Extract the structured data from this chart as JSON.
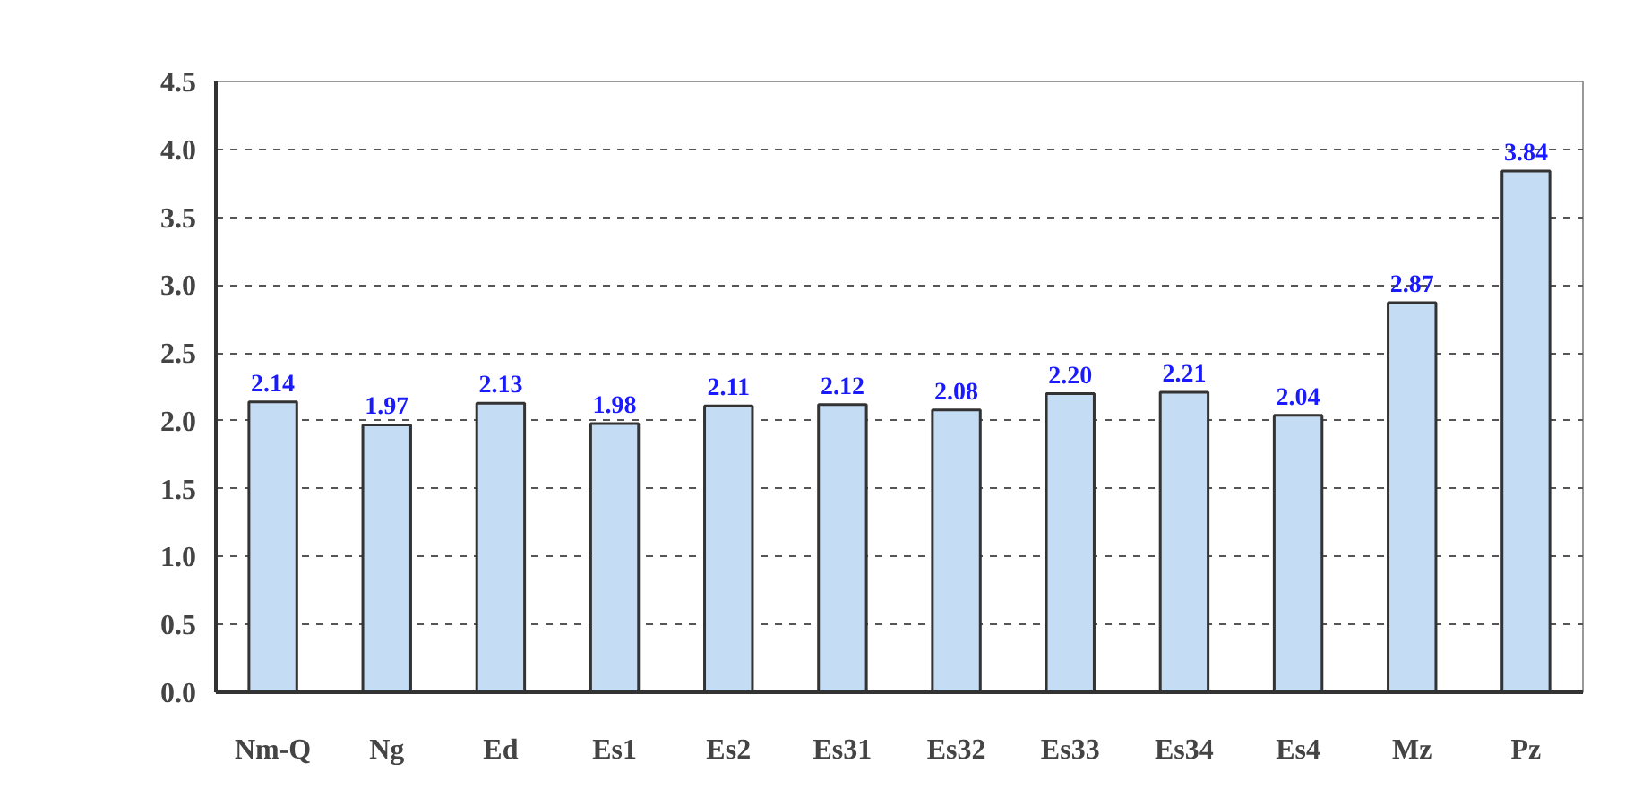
{
  "chart_data": {
    "type": "bar",
    "categories": [
      "Nm-Q",
      "Ng",
      "Ed",
      "Es1",
      "Es2",
      "Es31",
      "Es32",
      "Es33",
      "Es34",
      "Es4",
      "Mz",
      "Pz"
    ],
    "values": [
      2.14,
      1.97,
      2.13,
      1.98,
      2.11,
      2.12,
      2.08,
      2.2,
      2.21,
      2.04,
      2.87,
      3.84
    ],
    "value_labels": [
      "2.14",
      "1.97",
      "2.13",
      "1.98",
      "2.11",
      "2.12",
      "2.08",
      "2.20",
      "2.21",
      "2.04",
      "2.87",
      "3.84"
    ],
    "color": "#c4dcf4",
    "ylim": [
      0,
      4.5
    ],
    "yticks": [
      {
        "value": 0,
        "label": "0.0"
      },
      {
        "value": 0.5,
        "label": "0.5"
      },
      {
        "value": 1,
        "label": "1.0"
      },
      {
        "value": 1.5,
        "label": "1.5"
      },
      {
        "value": 2,
        "label": "2.0"
      },
      {
        "value": 2.5,
        "label": "2.5"
      },
      {
        "value": 3,
        "label": "3.0"
      },
      {
        "value": 3.5,
        "label": "3.5"
      },
      {
        "value": 4,
        "label": "4.0"
      },
      {
        "value": 4.5,
        "label": "4.5"
      }
    ],
    "grid": "y"
  }
}
